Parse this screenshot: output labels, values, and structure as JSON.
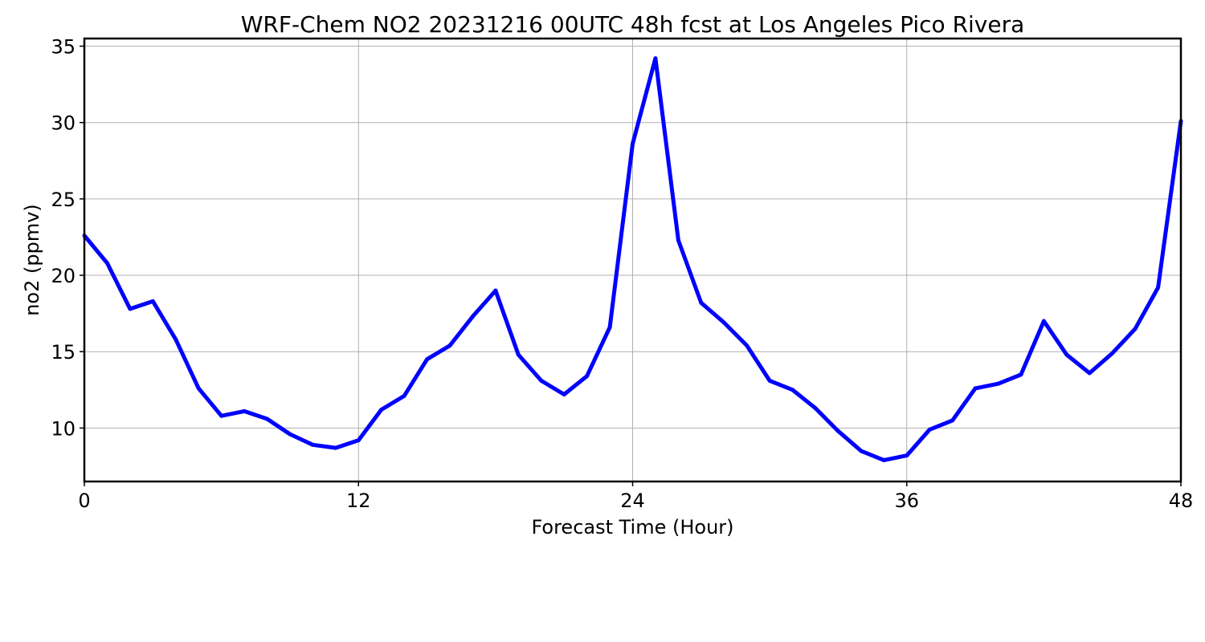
{
  "chart_data": {
    "type": "line",
    "title": "WRF-Chem NO2  20231216 00UTC 48h fcst at Los Angeles Pico Rivera",
    "xlabel": "Forecast Time (Hour)",
    "ylabel": "no2  (ppmv)",
    "xlim": [
      0,
      48
    ],
    "ylim": [
      6.5,
      35.5
    ],
    "xticks": [
      0,
      12,
      24,
      36,
      48
    ],
    "yticks": [
      10,
      15,
      20,
      25,
      30,
      35
    ],
    "grid": true,
    "legend": "none",
    "series": [
      {
        "color": "#0000ff",
        "x": [
          0,
          1,
          2,
          3,
          4,
          5,
          6,
          7,
          8,
          9,
          10,
          11,
          12,
          13,
          14,
          15,
          16,
          17,
          18,
          19,
          20,
          21,
          22,
          23,
          24,
          25,
          26,
          27,
          28,
          29,
          30,
          31,
          32,
          33,
          34,
          35,
          36,
          37,
          38,
          39,
          40,
          41,
          42,
          43,
          44,
          45,
          46,
          47,
          48
        ],
        "values": [
          22.6,
          20.8,
          17.8,
          18.3,
          15.8,
          12.6,
          10.8,
          11.1,
          10.6,
          9.6,
          8.9,
          8.7,
          9.2,
          11.2,
          12.1,
          14.5,
          15.4,
          17.3,
          19.0,
          14.8,
          13.1,
          12.2,
          13.4,
          16.6,
          28.6,
          34.2,
          22.3,
          18.2,
          16.9,
          15.4,
          13.1,
          12.5,
          11.3,
          9.8,
          8.5,
          7.9,
          8.2,
          9.9,
          10.5,
          12.6,
          12.9,
          13.5,
          17.0,
          14.8,
          13.6,
          14.9,
          16.5,
          19.2,
          30.1
        ]
      }
    ]
  }
}
